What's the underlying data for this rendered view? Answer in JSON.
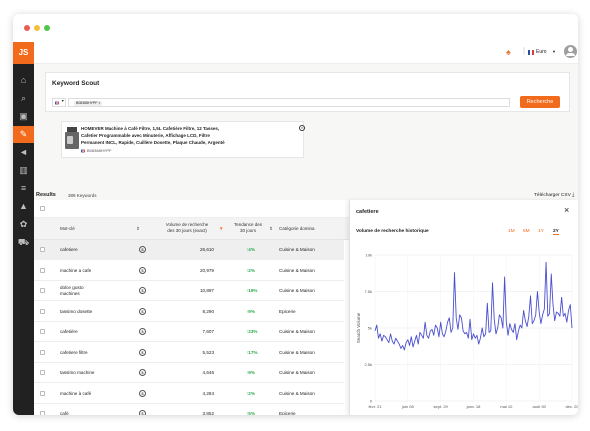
{
  "window": {
    "dots": [
      "#ee5b55",
      "#f6bd3b",
      "#4fc74a"
    ]
  },
  "sidebar": {
    "logo": "JS",
    "items": [
      {
        "icon": "house-icon",
        "glyph": "⌂"
      },
      {
        "icon": "search-icon",
        "glyph": "⌕"
      },
      {
        "icon": "box-icon",
        "glyph": "▣"
      },
      {
        "icon": "tools-icon",
        "glyph": "✎",
        "active": true
      },
      {
        "icon": "megaphone-icon",
        "glyph": "◄"
      },
      {
        "icon": "bar-chart-icon",
        "glyph": "▥"
      },
      {
        "icon": "stack-icon",
        "glyph": "≡"
      },
      {
        "icon": "graduation-cap-icon",
        "glyph": "▲"
      },
      {
        "icon": "gear-icon",
        "glyph": "✿"
      },
      {
        "icon": "cart-icon",
        "glyph": "⛟"
      }
    ]
  },
  "topbar": {
    "language": "Euro",
    "flag": "FR"
  },
  "scout": {
    "title": "Keyword Scout",
    "asin_chip": "B08388HYPF",
    "search_button": "Recherche"
  },
  "product": {
    "title_line1": "HOMEVER Machine à Café Filtre, 1,5L Cafetière Filtre, 12 Tasses,",
    "title_line2": "Cafetier Programmable avec Minuterie, Affichage LCD, Filtre",
    "title_line3": "Permanent INCL, Rapide, Cuillère Dosette, Plaque Chaude, Argenté",
    "asin": "B08388HYPF"
  },
  "results": {
    "label": "Results",
    "count": "389 Keywords",
    "download": "Télécharger CSV"
  },
  "table": {
    "headers": {
      "keyword": "Mot-clé",
      "volume_l1": "Volume de recherche",
      "volume_l2": "des 30 jours (exact)",
      "trend_l1": "Tendance des",
      "trend_l2": "30 jours",
      "category": "Catégorie domina"
    },
    "rows": [
      {
        "keyword": "cafetiere",
        "volume": "26,610",
        "trend": "4%",
        "category": "Cuisine & Maison"
      },
      {
        "keyword": "machine a cafe",
        "volume": "20,979",
        "trend": "2%",
        "category": "Cuisine & Maison"
      },
      {
        "keyword": "dolce gusto",
        "keyword2": "machines",
        "volume": "10,897",
        "trend": "19%",
        "category": "Cuisine & Maison"
      },
      {
        "keyword": "tassimo dosette",
        "volume": "8,290",
        "trend": "9%",
        "category": "Epicerie"
      },
      {
        "keyword": "cafetière",
        "volume": "7,607",
        "trend": "23%",
        "category": "Cuisine & Maison"
      },
      {
        "keyword": "cafetiere filtre",
        "volume": "5,523",
        "trend": "17%",
        "category": "Cuisine & Maison"
      },
      {
        "keyword": "tassimo machine",
        "volume": "4,646",
        "trend": "9%",
        "category": "Cuisine & Maison"
      },
      {
        "keyword": "machine à café",
        "volume": "4,284",
        "trend": "2%",
        "category": "Cuisine & Maison"
      },
      {
        "keyword": "café",
        "volume": "3,852",
        "trend": "5%",
        "category": "Epicerie"
      }
    ]
  },
  "panel": {
    "title": "cafetiere",
    "chart_title": "Volume de recherche historique",
    "ranges": [
      "1M",
      "6M",
      "1Y",
      "2Y"
    ],
    "active_range": "2Y",
    "line_color": "#4a4fcf"
  },
  "chart_data": {
    "type": "line",
    "title": "Volume de recherche historique",
    "xlabel": "",
    "ylabel": "Search Volume",
    "yticks": [
      "10k",
      "7.5k",
      "5k",
      "2.5k",
      "0"
    ],
    "ylim": [
      0,
      10000
    ],
    "xticks": [
      "févr. 21",
      "juin 08",
      "sept. 29",
      "janv. 18",
      "mai 10",
      "août 30",
      "déc. 20"
    ],
    "grid": true,
    "series": [
      {
        "values": [
          4800,
          5200,
          4300,
          4600,
          4100,
          4500,
          4400,
          4200,
          4000,
          4600,
          4100,
          3900,
          4300,
          4100,
          3900,
          3600,
          3800,
          3500,
          4000,
          4200,
          3800,
          4400,
          3700,
          4100,
          4500,
          3900,
          4700,
          4500,
          4300,
          5400,
          4500,
          4300,
          4800,
          4900,
          4500,
          5200,
          5000,
          4400,
          5400,
          4600,
          4400,
          4800,
          5400,
          5700,
          4700,
          5000,
          8800,
          5700,
          4900,
          5900,
          5700,
          4800,
          4600,
          4700,
          4300,
          5600,
          4200,
          4600,
          4300,
          4500,
          3900,
          4300,
          5000,
          4400,
          4600,
          6700,
          4700,
          4800,
          8100,
          5600,
          4600,
          5000,
          5900,
          5700,
          5000,
          8500,
          5400,
          4500,
          5300,
          4900,
          4700,
          5300,
          4200,
          4800,
          5200,
          5000,
          6200,
          5500,
          5100,
          5800,
          7200,
          5300,
          5500,
          5900,
          7500,
          6100,
          5300,
          5900,
          6300,
          9500,
          5800,
          6000,
          8700,
          6600,
          5500,
          6100,
          6000,
          5800,
          7100,
          5800,
          6000,
          5400,
          6200,
          6600,
          5000
        ]
      }
    ]
  }
}
